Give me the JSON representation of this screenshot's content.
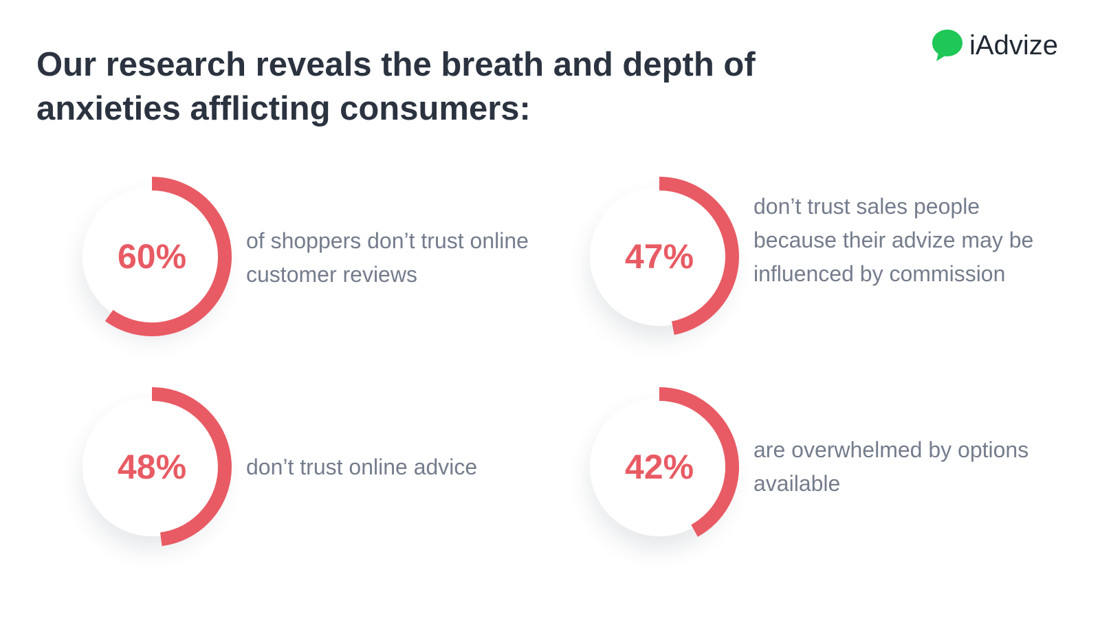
{
  "header": {
    "title": "Our research reveals the breath and depth of anxieties afflicting consumers:"
  },
  "logo": {
    "text": "iAdvize",
    "icon": "chat-bubble-icon",
    "color": "#1fc757"
  },
  "chart_data": {
    "type": "donut",
    "accent_color": "#e85b64",
    "stats": [
      {
        "value": 60,
        "label": "60%",
        "description": "of shoppers don’t trust online customer reviews"
      },
      {
        "value": 47,
        "label": "47%",
        "description": "don’t trust sales people because their advize may be influenced by commission"
      },
      {
        "value": 48,
        "label": "48%",
        "description": "don’t trust online advice"
      },
      {
        "value": 42,
        "label": "42%",
        "description": "are overwhelmed by options available"
      }
    ]
  }
}
